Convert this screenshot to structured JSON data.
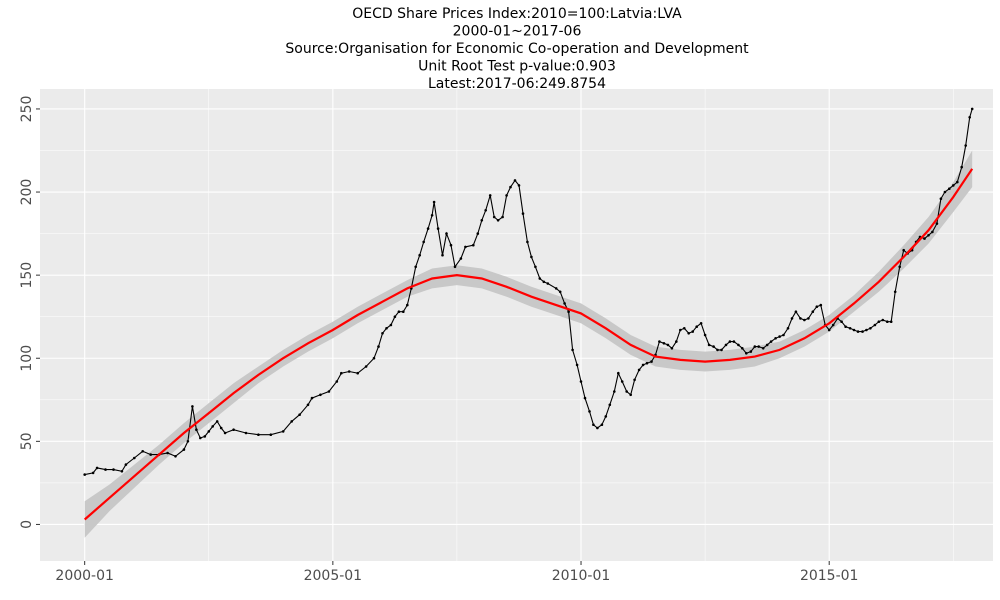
{
  "chart_data": {
    "type": "line",
    "title_lines": [
      "OECD Share Prices Index:2010=100:Latvia:LVA",
      "2000-01~2017-06",
      "Source:Organisation for Economic Co-operation and Development",
      "Unit Root Test p-value:0.903",
      "Latest:2017-06:249.8754"
    ],
    "xlabel": "",
    "ylabel": "",
    "x_ticks": [
      {
        "value": 2000.0,
        "label": "2000-01"
      },
      {
        "value": 2005.0,
        "label": "2005-01"
      },
      {
        "value": 2010.0,
        "label": "2010-01"
      },
      {
        "value": 2015.0,
        "label": "2015-01"
      }
    ],
    "y_ticks": [
      0,
      50,
      100,
      150,
      200,
      250
    ],
    "xlim": [
      1999.1,
      2018.3
    ],
    "ylim": [
      -22,
      262
    ],
    "grid": true,
    "colors": {
      "panel": "#ebebeb",
      "grid": "#ffffff",
      "series": "#000000",
      "trend": "#ff0000",
      "band": "#c8c8c8"
    },
    "series": [
      {
        "values": [
          [
            2000.0,
            30
          ],
          [
            2000.17,
            31
          ],
          [
            2000.25,
            34
          ],
          [
            2000.42,
            33
          ],
          [
            2000.58,
            33
          ],
          [
            2000.75,
            32
          ],
          [
            2000.83,
            36
          ],
          [
            2001.0,
            40
          ],
          [
            2001.17,
            44
          ],
          [
            2001.33,
            42
          ],
          [
            2001.5,
            42
          ],
          [
            2001.67,
            43
          ],
          [
            2001.83,
            41
          ],
          [
            2002.0,
            45
          ],
          [
            2002.08,
            50
          ],
          [
            2002.17,
            71
          ],
          [
            2002.25,
            57
          ],
          [
            2002.33,
            52
          ],
          [
            2002.42,
            53
          ],
          [
            2002.5,
            56
          ],
          [
            2002.58,
            59
          ],
          [
            2002.67,
            62
          ],
          [
            2002.75,
            58
          ],
          [
            2002.83,
            55
          ],
          [
            2003.0,
            57
          ],
          [
            2003.25,
            55
          ],
          [
            2003.5,
            54
          ],
          [
            2003.75,
            54
          ],
          [
            2004.0,
            56
          ],
          [
            2004.17,
            62
          ],
          [
            2004.33,
            66
          ],
          [
            2004.5,
            72
          ],
          [
            2004.58,
            76
          ],
          [
            2004.75,
            78
          ],
          [
            2004.92,
            80
          ],
          [
            2005.08,
            86
          ],
          [
            2005.17,
            91
          ],
          [
            2005.33,
            92
          ],
          [
            2005.5,
            91
          ],
          [
            2005.67,
            95
          ],
          [
            2005.83,
            100
          ],
          [
            2005.92,
            107
          ],
          [
            2006.0,
            115
          ],
          [
            2006.08,
            118
          ],
          [
            2006.17,
            120
          ],
          [
            2006.25,
            125
          ],
          [
            2006.33,
            128
          ],
          [
            2006.42,
            128
          ],
          [
            2006.5,
            132
          ],
          [
            2006.58,
            142
          ],
          [
            2006.67,
            155
          ],
          [
            2006.75,
            162
          ],
          [
            2006.83,
            170
          ],
          [
            2006.92,
            178
          ],
          [
            2007.0,
            186
          ],
          [
            2007.04,
            194
          ],
          [
            2007.12,
            178
          ],
          [
            2007.21,
            162
          ],
          [
            2007.29,
            175
          ],
          [
            2007.38,
            168
          ],
          [
            2007.46,
            155
          ],
          [
            2007.58,
            160
          ],
          [
            2007.67,
            167
          ],
          [
            2007.83,
            168
          ],
          [
            2007.92,
            175
          ],
          [
            2008.0,
            183
          ],
          [
            2008.08,
            189
          ],
          [
            2008.17,
            198
          ],
          [
            2008.25,
            185
          ],
          [
            2008.33,
            183
          ],
          [
            2008.42,
            185
          ],
          [
            2008.5,
            198
          ],
          [
            2008.58,
            203
          ],
          [
            2008.67,
            207
          ],
          [
            2008.75,
            204
          ],
          [
            2008.83,
            187
          ],
          [
            2008.92,
            170
          ],
          [
            2009.0,
            161
          ],
          [
            2009.08,
            155
          ],
          [
            2009.17,
            148
          ],
          [
            2009.25,
            146
          ],
          [
            2009.33,
            145
          ],
          [
            2009.5,
            142
          ],
          [
            2009.58,
            140
          ],
          [
            2009.67,
            133
          ],
          [
            2009.75,
            128
          ],
          [
            2009.83,
            105
          ],
          [
            2009.92,
            96
          ],
          [
            2010.0,
            86
          ],
          [
            2010.08,
            76
          ],
          [
            2010.17,
            68
          ],
          [
            2010.25,
            60
          ],
          [
            2010.33,
            58
          ],
          [
            2010.42,
            60
          ],
          [
            2010.5,
            65
          ],
          [
            2010.58,
            72
          ],
          [
            2010.67,
            80
          ],
          [
            2010.75,
            91
          ],
          [
            2010.83,
            86
          ],
          [
            2010.92,
            80
          ],
          [
            2011.0,
            78
          ],
          [
            2011.08,
            87
          ],
          [
            2011.17,
            93
          ],
          [
            2011.25,
            96
          ],
          [
            2011.33,
            97
          ],
          [
            2011.42,
            98
          ],
          [
            2011.5,
            102
          ],
          [
            2011.58,
            110
          ],
          [
            2011.67,
            109
          ],
          [
            2011.75,
            108
          ],
          [
            2011.83,
            106
          ],
          [
            2011.92,
            110
          ],
          [
            2012.0,
            117
          ],
          [
            2012.08,
            118
          ],
          [
            2012.17,
            115
          ],
          [
            2012.25,
            116
          ],
          [
            2012.33,
            119
          ],
          [
            2012.42,
            121
          ],
          [
            2012.5,
            114
          ],
          [
            2012.58,
            108
          ],
          [
            2012.67,
            107
          ],
          [
            2012.75,
            105
          ],
          [
            2012.83,
            105
          ],
          [
            2012.92,
            108
          ],
          [
            2013.0,
            110
          ],
          [
            2013.08,
            110
          ],
          [
            2013.17,
            108
          ],
          [
            2013.25,
            106
          ],
          [
            2013.33,
            103
          ],
          [
            2013.42,
            104
          ],
          [
            2013.5,
            107
          ],
          [
            2013.58,
            107
          ],
          [
            2013.67,
            106
          ],
          [
            2013.75,
            108
          ],
          [
            2013.83,
            110
          ],
          [
            2013.92,
            112
          ],
          [
            2014.0,
            113
          ],
          [
            2014.08,
            114
          ],
          [
            2014.17,
            118
          ],
          [
            2014.25,
            124
          ],
          [
            2014.33,
            128
          ],
          [
            2014.42,
            124
          ],
          [
            2014.5,
            123
          ],
          [
            2014.58,
            124
          ],
          [
            2014.67,
            128
          ],
          [
            2014.75,
            131
          ],
          [
            2014.83,
            132
          ],
          [
            2014.92,
            120
          ],
          [
            2015.0,
            117
          ],
          [
            2015.08,
            120
          ],
          [
            2015.17,
            124
          ],
          [
            2015.25,
            122
          ],
          [
            2015.33,
            119
          ],
          [
            2015.42,
            118
          ],
          [
            2015.5,
            117
          ],
          [
            2015.58,
            116
          ],
          [
            2015.67,
            116
          ],
          [
            2015.75,
            117
          ],
          [
            2015.83,
            118
          ],
          [
            2015.92,
            120
          ],
          [
            2016.0,
            122
          ],
          [
            2016.08,
            123
          ],
          [
            2016.17,
            122
          ],
          [
            2016.25,
            122
          ],
          [
            2016.33,
            140
          ],
          [
            2016.42,
            155
          ],
          [
            2016.5,
            165
          ],
          [
            2016.58,
            163
          ],
          [
            2016.67,
            165
          ],
          [
            2016.75,
            170
          ],
          [
            2016.83,
            173
          ],
          [
            2016.92,
            172
          ],
          [
            2017.0,
            174
          ],
          [
            2017.08,
            176
          ],
          [
            2017.17,
            181
          ],
          [
            2017.25,
            196
          ],
          [
            2017.33,
            200
          ],
          [
            2017.42,
            202
          ],
          [
            2017.5,
            204
          ],
          [
            2017.58,
            206
          ],
          [
            2017.67,
            215
          ],
          [
            2017.75,
            228
          ],
          [
            2017.83,
            245
          ],
          [
            2017.88,
            250
          ]
        ]
      }
    ],
    "trend": {
      "values": [
        [
          2000.0,
          3
        ],
        [
          2000.5,
          16
        ],
        [
          2001.0,
          29
        ],
        [
          2001.5,
          42
        ],
        [
          2002.0,
          55
        ],
        [
          2002.5,
          67
        ],
        [
          2003.0,
          79
        ],
        [
          2003.5,
          90
        ],
        [
          2004.0,
          100
        ],
        [
          2004.5,
          109
        ],
        [
          2005.0,
          117
        ],
        [
          2005.5,
          126
        ],
        [
          2006.0,
          134
        ],
        [
          2006.5,
          142
        ],
        [
          2007.0,
          148
        ],
        [
          2007.5,
          150
        ],
        [
          2008.0,
          148
        ],
        [
          2008.5,
          143
        ],
        [
          2009.0,
          137
        ],
        [
          2009.5,
          132
        ],
        [
          2010.0,
          127
        ],
        [
          2010.5,
          118
        ],
        [
          2011.0,
          108
        ],
        [
          2011.5,
          101
        ],
        [
          2012.0,
          99
        ],
        [
          2012.5,
          98
        ],
        [
          2013.0,
          99
        ],
        [
          2013.5,
          101
        ],
        [
          2014.0,
          105
        ],
        [
          2014.5,
          112
        ],
        [
          2015.0,
          121
        ],
        [
          2015.5,
          133
        ],
        [
          2016.0,
          146
        ],
        [
          2016.5,
          161
        ],
        [
          2017.0,
          177
        ],
        [
          2017.5,
          197
        ],
        [
          2017.88,
          214
        ]
      ],
      "band_halfwidth": [
        11,
        8,
        7,
        6,
        6,
        6,
        6,
        5,
        5,
        5,
        5,
        5,
        5,
        5,
        6,
        6,
        6,
        6,
        6,
        6,
        6,
        6,
        6,
        6,
        6,
        6,
        6,
        6,
        5,
        5,
        5,
        5,
        6,
        7,
        8,
        9,
        11
      ]
    }
  }
}
